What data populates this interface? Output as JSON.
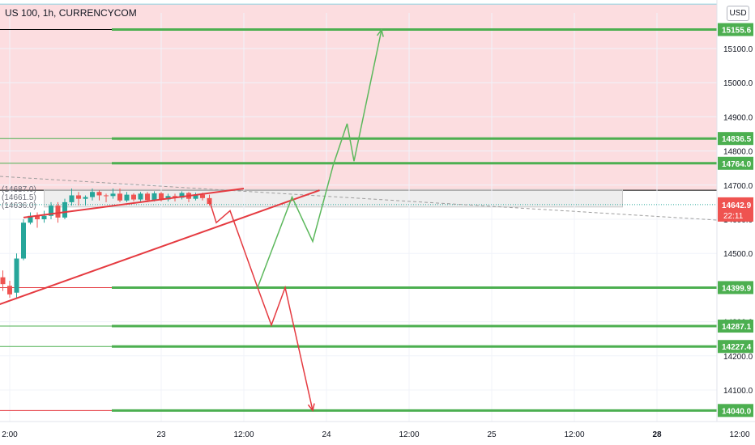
{
  "header": {
    "title": "US 100, 1h, CURRENCYCOM",
    "currency_button": "USD"
  },
  "colors": {
    "zone_fill": "#fcdde0",
    "support_green": "#4caf50",
    "bull_candle": "#26a69a",
    "bear_candle": "#ef5350",
    "red_path": "#e53a40",
    "green_path": "#5cb85c",
    "price_label_bg": "#ef5350",
    "level_label_bg": "#4caf50"
  },
  "chart_data": {
    "type": "line",
    "symbol": "US 100",
    "timeframe": "1h",
    "source": "CURRENCYCOM",
    "y_axis": {
      "ticks": [
        14100.0,
        14200.0,
        14300.0,
        14400.0,
        14500.0,
        14600.0,
        14700.0,
        14800.0,
        14900.0,
        15000.0,
        15100.0
      ],
      "tick_labels": [
        "14100.0",
        "14200.0",
        "14300.0",
        "14400.0",
        "14500.0",
        "14600.0",
        "14700.0",
        "14800.0",
        "14900.0",
        "15000.0",
        "15100.0"
      ],
      "range": [
        14030,
        15200
      ]
    },
    "x_axis": {
      "tick_labels": [
        "2:00",
        "23",
        "12:00",
        "24",
        "12:00",
        "25",
        "12:00",
        "28",
        "12:00"
      ],
      "tick_x": [
        -10,
        12,
        24,
        36,
        48,
        60,
        72,
        84,
        96
      ],
      "unit": "hours since 2021-06-23 00:00",
      "range": [
        -13,
        102
      ]
    },
    "resistance_zone": {
      "from": 14685,
      "to": 15230
    },
    "levels": [
      {
        "value": 15155.6,
        "label": "15155.6"
      },
      {
        "value": 14836.5,
        "label": "14836.5"
      },
      {
        "value": 14764.0,
        "label": "14764.0"
      },
      {
        "value": 14399.9,
        "label": "14399.9"
      },
      {
        "value": 14287.1,
        "label": "14287.1"
      },
      {
        "value": 14227.4,
        "label": "14227.4"
      },
      {
        "value": 14040.0,
        "label": "14040.0"
      }
    ],
    "current_price": {
      "value": 14642.9,
      "label": "14642.9",
      "countdown": "22:11"
    },
    "range_labels": [
      "14687.0",
      "14661.5",
      "14636.0"
    ],
    "candles": [
      {
        "t": -12,
        "o": 14420,
        "h": 14440,
        "l": 14400,
        "c": 14430
      },
      {
        "t": -11,
        "o": 14430,
        "h": 14450,
        "l": 14390,
        "c": 14410
      },
      {
        "t": -10,
        "o": 14405,
        "h": 14420,
        "l": 14370,
        "c": 14380
      },
      {
        "t": -9,
        "o": 14385,
        "h": 14500,
        "l": 14370,
        "c": 14485
      },
      {
        "t": -8,
        "o": 14485,
        "h": 14600,
        "l": 14480,
        "c": 14590
      },
      {
        "t": -7,
        "o": 14590,
        "h": 14620,
        "l": 14585,
        "c": 14610
      },
      {
        "t": -6,
        "o": 14610,
        "h": 14620,
        "l": 14575,
        "c": 14600
      },
      {
        "t": -5,
        "o": 14600,
        "h": 14625,
        "l": 14590,
        "c": 14610
      },
      {
        "t": -4,
        "o": 14610,
        "h": 14650,
        "l": 14600,
        "c": 14640
      },
      {
        "t": -3,
        "o": 14640,
        "h": 14650,
        "l": 14590,
        "c": 14605
      },
      {
        "t": -2,
        "o": 14605,
        "h": 14660,
        "l": 14600,
        "c": 14650
      },
      {
        "t": -1,
        "o": 14650,
        "h": 14690,
        "l": 14640,
        "c": 14670
      },
      {
        "t": 0,
        "o": 14670,
        "h": 14680,
        "l": 14640,
        "c": 14660
      },
      {
        "t": 1,
        "o": 14660,
        "h": 14670,
        "l": 14640,
        "c": 14665
      },
      {
        "t": 2,
        "o": 14665,
        "h": 14690,
        "l": 14655,
        "c": 14680
      },
      {
        "t": 3,
        "o": 14680,
        "h": 14685,
        "l": 14655,
        "c": 14670
      },
      {
        "t": 4,
        "o": 14670,
        "h": 14675,
        "l": 14650,
        "c": 14668
      },
      {
        "t": 5,
        "o": 14668,
        "h": 14690,
        "l": 14660,
        "c": 14675
      },
      {
        "t": 6,
        "o": 14675,
        "h": 14690,
        "l": 14650,
        "c": 14655
      },
      {
        "t": 7,
        "o": 14655,
        "h": 14680,
        "l": 14650,
        "c": 14672
      },
      {
        "t": 8,
        "o": 14672,
        "h": 14676,
        "l": 14652,
        "c": 14658
      },
      {
        "t": 9,
        "o": 14658,
        "h": 14680,
        "l": 14650,
        "c": 14675
      },
      {
        "t": 10,
        "o": 14675,
        "h": 14680,
        "l": 14650,
        "c": 14656
      },
      {
        "t": 11,
        "o": 14656,
        "h": 14682,
        "l": 14652,
        "c": 14676
      },
      {
        "t": 12,
        "o": 14676,
        "h": 14680,
        "l": 14652,
        "c": 14658
      },
      {
        "t": 13,
        "o": 14658,
        "h": 14675,
        "l": 14652,
        "c": 14668
      },
      {
        "t": 14,
        "o": 14668,
        "h": 14675,
        "l": 14652,
        "c": 14663
      },
      {
        "t": 15,
        "o": 14663,
        "h": 14682,
        "l": 14658,
        "c": 14677
      },
      {
        "t": 16,
        "o": 14677,
        "h": 14680,
        "l": 14650,
        "c": 14660
      },
      {
        "t": 17,
        "o": 14660,
        "h": 14678,
        "l": 14655,
        "c": 14672
      },
      {
        "t": 18,
        "o": 14672,
        "h": 14678,
        "l": 14655,
        "c": 14662
      },
      {
        "t": 19,
        "o": 14662,
        "h": 14672,
        "l": 14640,
        "c": 14645
      }
    ],
    "trendlines": [
      {
        "points": [
          [
            -13,
            14340
          ],
          [
            35,
            14685
          ]
        ]
      },
      {
        "points": [
          [
            -8,
            14605
          ],
          [
            24,
            14690
          ]
        ]
      }
    ],
    "bearish_path": [
      [
        19,
        14655
      ],
      [
        20,
        14590
      ],
      [
        22,
        14625
      ],
      [
        26,
        14400
      ],
      [
        28,
        14290
      ],
      [
        30,
        14400
      ],
      [
        34,
        14040
      ]
    ],
    "bullish_path": [
      [
        26,
        14400
      ],
      [
        31,
        14665
      ],
      [
        34,
        14535
      ],
      [
        37,
        14760
      ],
      [
        39,
        14880
      ],
      [
        40,
        14770
      ],
      [
        44,
        15155
      ]
    ]
  }
}
